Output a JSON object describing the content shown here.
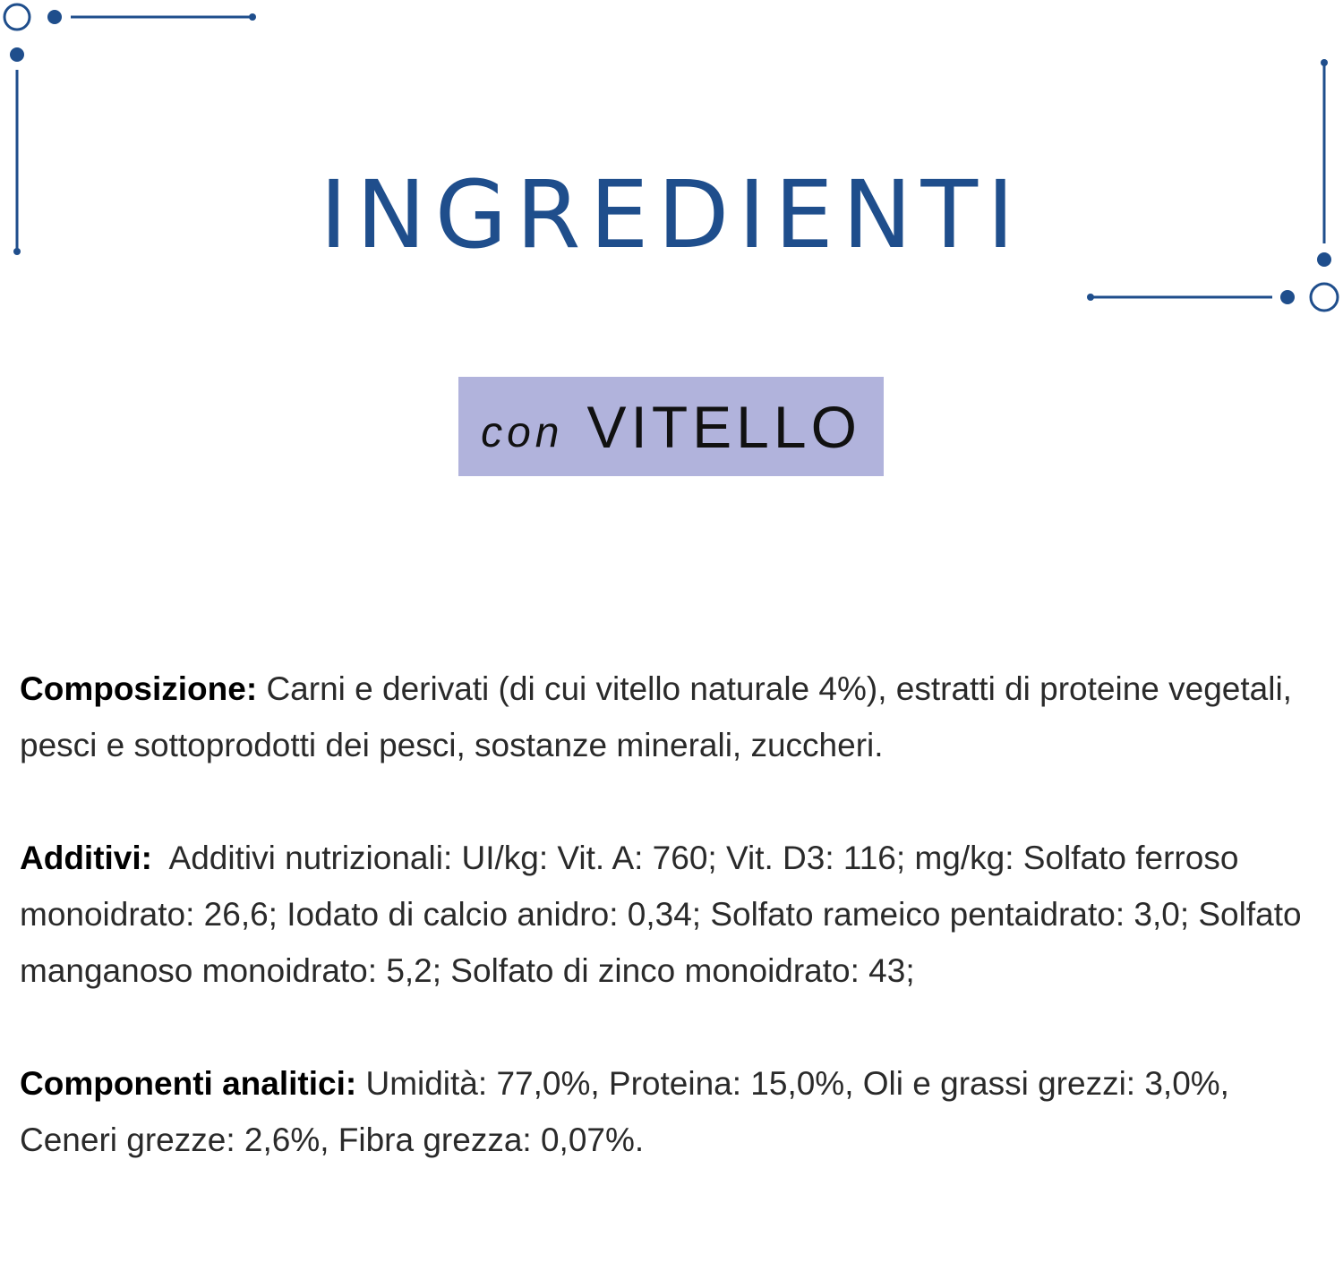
{
  "title": "INGREDIENTI",
  "badge": {
    "prefix": "con",
    "name": "VITELLO"
  },
  "colors": {
    "accent": "#1f4e8c",
    "badge_bg": "#b1b3dc"
  },
  "sections": [
    {
      "label": "Composizione:",
      "text": "Carni e derivati (di cui vitello naturale 4%), estratti di proteine vegetali, pesci e sottoprodotti dei pesci, sostanze minerali, zuccheri."
    },
    {
      "label": "Additivi:",
      "text": "Additivi nutrizionali: UI/kg: Vit. A: 760; Vit. D3: 116; mg/kg: Solfato ferroso monoidrato: 26,6; Iodato di calcio anidro: 0,34; Solfato rameico pentaidrato: 3,0; Solfato manganoso monoidrato: 5,2; Solfato di zinco monoidrato: 43;"
    },
    {
      "label": "Componenti analitici:",
      "text": "Umidità: 77,0%, Proteina: 15,0%, Oli e grassi grezzi: 3,0%, Ceneri grezze: 2,6%, Fibra grezza: 0,07%."
    }
  ]
}
